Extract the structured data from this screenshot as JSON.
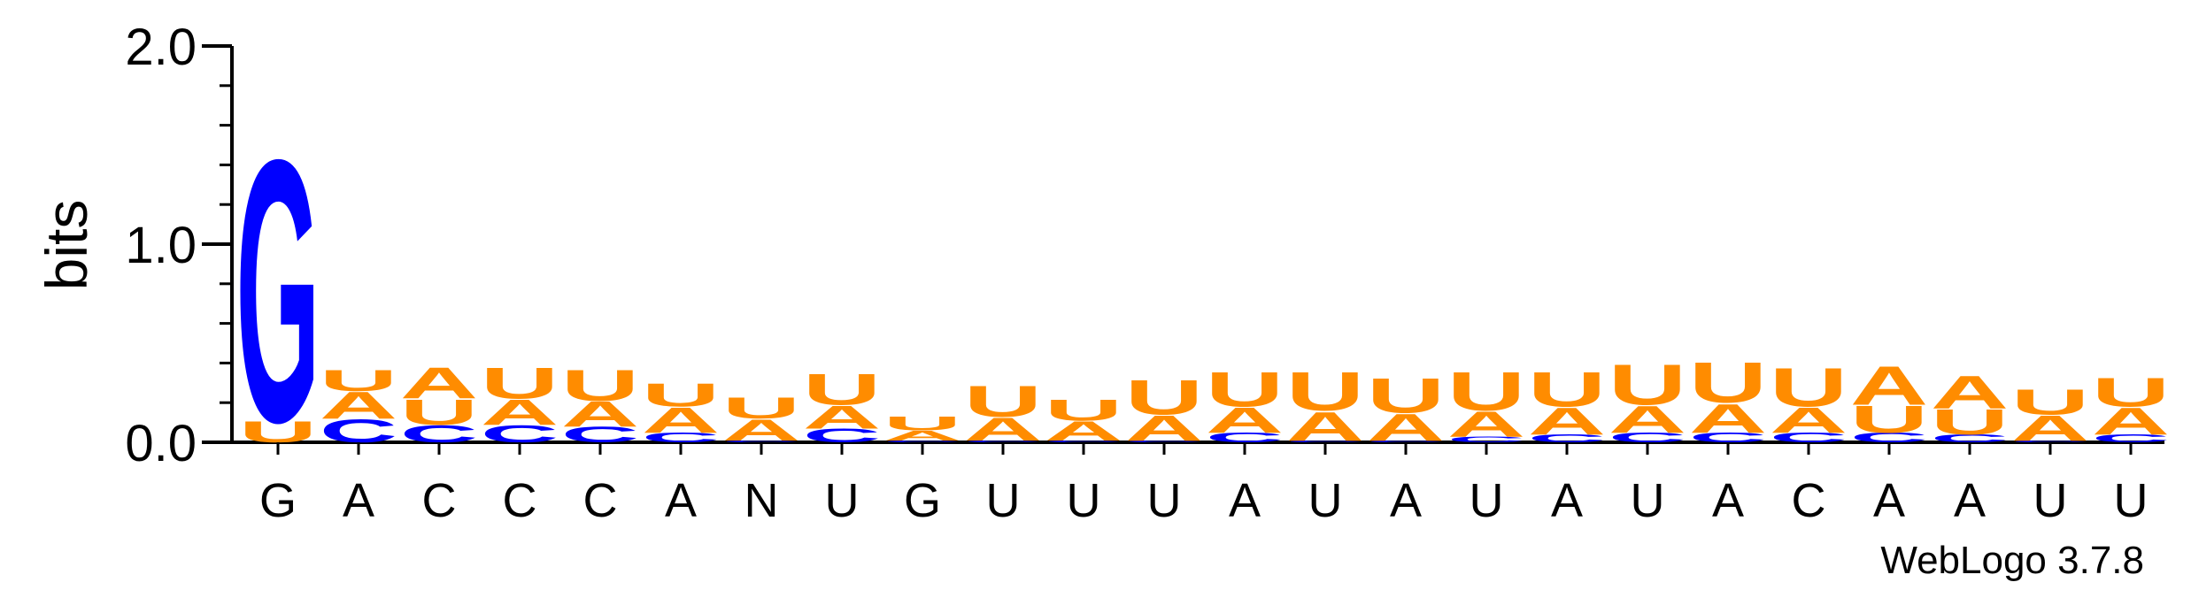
{
  "chart_data": {
    "type": "sequence-logo",
    "ylabel": "bits",
    "ylim": [
      0,
      2.0
    ],
    "yticks": [
      "0.0",
      "1.0",
      "2.0"
    ],
    "credit": "WebLogo 3.7.8",
    "colors": {
      "G": "#0000ff",
      "C": "#0000ff",
      "A": "#ff8c00",
      "U": "#ff8c00"
    },
    "positions": [
      {
        "label": "G",
        "stack": [
          [
            "U",
            0.11
          ],
          [
            "G",
            1.36
          ]
        ]
      },
      {
        "label": "A",
        "stack": [
          [
            "C",
            0.12
          ],
          [
            "A",
            0.14
          ],
          [
            "U",
            0.11
          ]
        ]
      },
      {
        "label": "C",
        "stack": [
          [
            "C",
            0.09
          ],
          [
            "U",
            0.13
          ],
          [
            "A",
            0.16
          ]
        ]
      },
      {
        "label": "C",
        "stack": [
          [
            "C",
            0.09
          ],
          [
            "A",
            0.13
          ],
          [
            "U",
            0.16
          ]
        ]
      },
      {
        "label": "C",
        "stack": [
          [
            "C",
            0.08
          ],
          [
            "A",
            0.13
          ],
          [
            "U",
            0.16
          ]
        ]
      },
      {
        "label": "A",
        "stack": [
          [
            "C",
            0.05
          ],
          [
            "A",
            0.13
          ],
          [
            "U",
            0.12
          ]
        ]
      },
      {
        "label": "N",
        "stack": [
          [
            "C",
            0.01
          ],
          [
            "A",
            0.11
          ],
          [
            "U",
            0.11
          ]
        ]
      },
      {
        "label": "U",
        "stack": [
          [
            "C",
            0.07
          ],
          [
            "A",
            0.12
          ],
          [
            "U",
            0.16
          ]
        ]
      },
      {
        "label": "G",
        "stack": [
          [
            "C",
            0.01
          ],
          [
            "A",
            0.05
          ],
          [
            "U",
            0.07
          ]
        ]
      },
      {
        "label": "U",
        "stack": [
          [
            "C",
            0.01
          ],
          [
            "A",
            0.12
          ],
          [
            "U",
            0.16
          ]
        ]
      },
      {
        "label": "U",
        "stack": [
          [
            "C",
            0.01
          ],
          [
            "A",
            0.1
          ],
          [
            "U",
            0.11
          ]
        ]
      },
      {
        "label": "U",
        "stack": [
          [
            "C",
            0.01
          ],
          [
            "A",
            0.13
          ],
          [
            "U",
            0.18
          ]
        ]
      },
      {
        "label": "A",
        "stack": [
          [
            "C",
            0.05
          ],
          [
            "A",
            0.13
          ],
          [
            "U",
            0.18
          ]
        ]
      },
      {
        "label": "U",
        "stack": [
          [
            "C",
            0.01
          ],
          [
            "A",
            0.15
          ],
          [
            "U",
            0.2
          ]
        ]
      },
      {
        "label": "A",
        "stack": [
          [
            "C",
            0.01
          ],
          [
            "A",
            0.14
          ],
          [
            "U",
            0.18
          ]
        ]
      },
      {
        "label": "U",
        "stack": [
          [
            "C",
            0.03
          ],
          [
            "A",
            0.13
          ],
          [
            "U",
            0.2
          ]
        ]
      },
      {
        "label": "A",
        "stack": [
          [
            "C",
            0.04
          ],
          [
            "A",
            0.14
          ],
          [
            "U",
            0.18
          ]
        ]
      },
      {
        "label": "U",
        "stack": [
          [
            "C",
            0.05
          ],
          [
            "A",
            0.14
          ],
          [
            "U",
            0.21
          ]
        ]
      },
      {
        "label": "A",
        "stack": [
          [
            "C",
            0.05
          ],
          [
            "A",
            0.15
          ],
          [
            "U",
            0.21
          ]
        ]
      },
      {
        "label": "C",
        "stack": [
          [
            "C",
            0.05
          ],
          [
            "A",
            0.13
          ],
          [
            "U",
            0.2
          ]
        ]
      },
      {
        "label": "A",
        "stack": [
          [
            "C",
            0.05
          ],
          [
            "U",
            0.14
          ],
          [
            "A",
            0.2
          ]
        ]
      },
      {
        "label": "A",
        "stack": [
          [
            "C",
            0.04
          ],
          [
            "U",
            0.13
          ],
          [
            "A",
            0.17
          ]
        ]
      },
      {
        "label": "U",
        "stack": [
          [
            "C",
            0.01
          ],
          [
            "A",
            0.13
          ],
          [
            "U",
            0.13
          ]
        ]
      },
      {
        "label": "U",
        "stack": [
          [
            "C",
            0.04
          ],
          [
            "A",
            0.14
          ],
          [
            "U",
            0.15
          ]
        ]
      }
    ]
  }
}
